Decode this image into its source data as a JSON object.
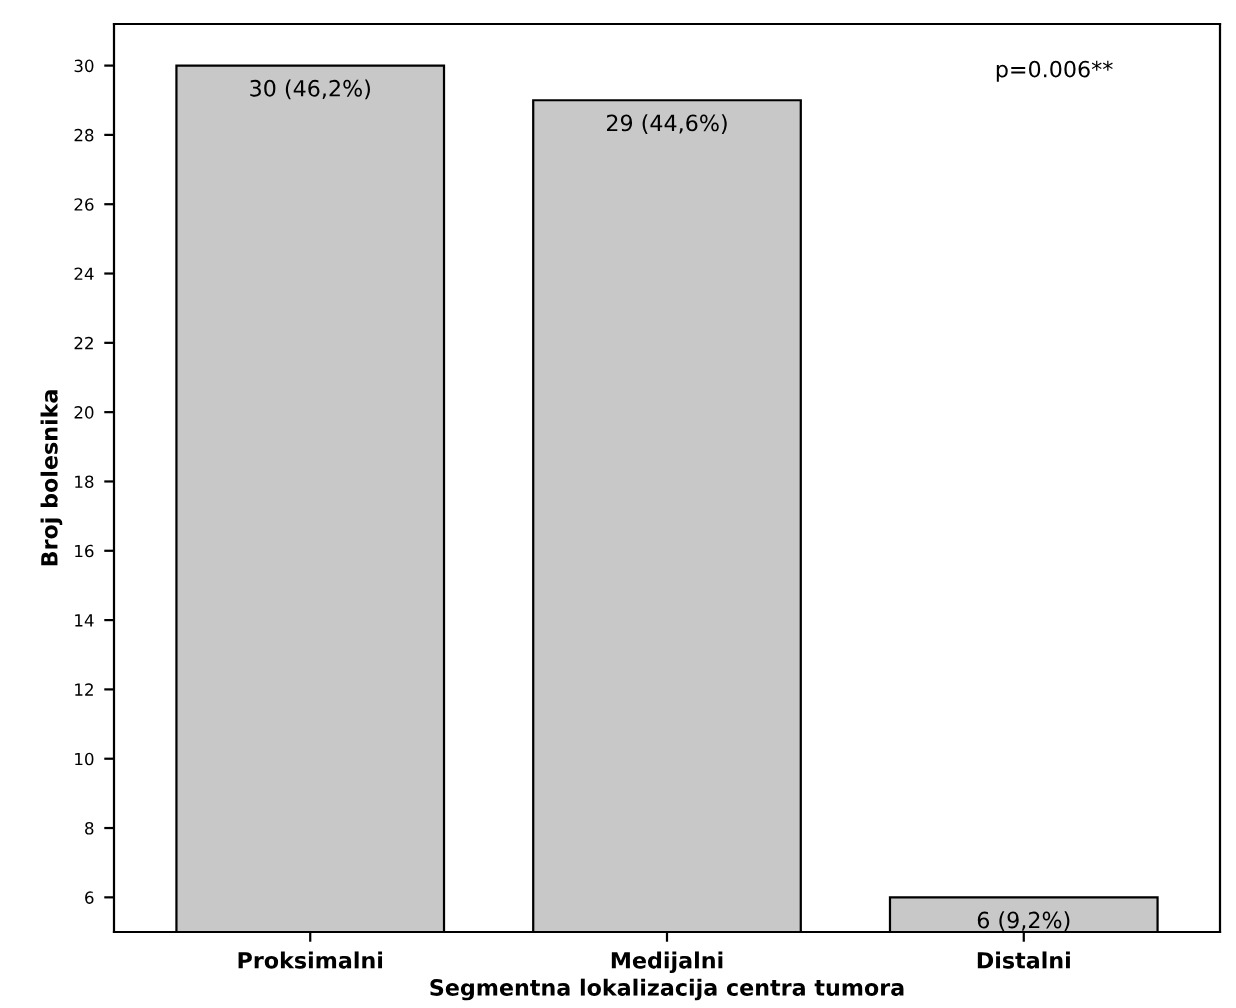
{
  "chart_data": {
    "type": "bar",
    "xlabel": "Segmentna lokalizacija centra tumora",
    "ylabel": "Broj bolesnika",
    "categories": [
      "Proksimalni",
      "Medijalni",
      "Distalni"
    ],
    "values": [
      30,
      29,
      6
    ],
    "color": "#c8c8c8",
    "value_labels": [
      "30 (46,2%)",
      "29 (44,6%)",
      "6 (9,2%)"
    ],
    "ylim": [
      5,
      31.2
    ],
    "yticks": [
      6,
      8,
      10,
      12,
      14,
      16,
      18,
      20,
      22,
      24,
      26,
      28,
      30
    ],
    "annotations": [
      "p=0.006**"
    ],
    "grid": false,
    "legend": false
  }
}
